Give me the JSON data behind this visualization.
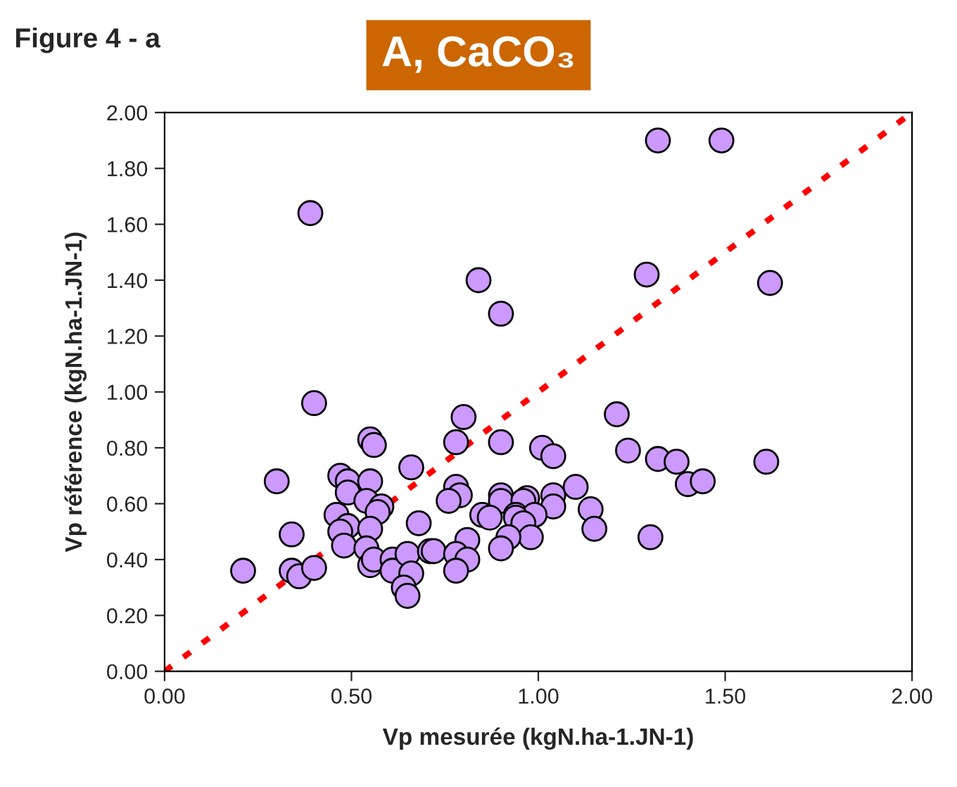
{
  "chart_data": {
    "type": "scatter",
    "title": "Figure 4 - a",
    "subtitle": "A, CaCO₃",
    "xlabel": "Vp mesurée (kgN.ha-1.JN-1)",
    "ylabel": "Vp référence (kgN.ha-1.JN-1)",
    "xlim": [
      0,
      2
    ],
    "ylim": [
      0,
      2
    ],
    "xticks": [
      {
        "value": 0,
        "label": "0.00"
      },
      {
        "value": 0.5,
        "label": "0.50"
      },
      {
        "value": 1,
        "label": "1.00"
      },
      {
        "value": 1.5,
        "label": "1.50"
      },
      {
        "value": 2,
        "label": "2.00"
      }
    ],
    "yticks": [
      {
        "value": 0,
        "label": "0.00"
      },
      {
        "value": 0.2,
        "label": "0.20"
      },
      {
        "value": 0.4,
        "label": "0.40"
      },
      {
        "value": 0.6,
        "label": "0.60"
      },
      {
        "value": 0.8,
        "label": "0.80"
      },
      {
        "value": 1,
        "label": "1.00"
      },
      {
        "value": 1.2,
        "label": "1.20"
      },
      {
        "value": 1.4,
        "label": "1.40"
      },
      {
        "value": 1.6,
        "label": "1.60"
      },
      {
        "value": 1.8,
        "label": "1.80"
      },
      {
        "value": 2,
        "label": "2.00"
      }
    ],
    "grid": false,
    "marker": "circle",
    "series": [
      {
        "color": "#cc99ff",
        "x": [
          0.39,
          0.84,
          0.9,
          1.29,
          1.62,
          1.32,
          1.49,
          0.4,
          0.55,
          0.56,
          0.3,
          0.47,
          0.49,
          0.55,
          0.66,
          0.49,
          0.54,
          0.58,
          0.57,
          0.46,
          0.49,
          0.47,
          0.48,
          0.55,
          0.68,
          0.34,
          0.54,
          0.55,
          0.56,
          0.61,
          0.61,
          0.65,
          0.66,
          0.64,
          0.65,
          0.71,
          0.21,
          0.34,
          0.36,
          0.4,
          0.8,
          0.78,
          0.9,
          1.21,
          1.01,
          1.04,
          1.24,
          1.32,
          1.37,
          1.4,
          1.44,
          0.78,
          0.79,
          0.76,
          0.9,
          0.9,
          0.97,
          0.96,
          1.04,
          1.04,
          1.1,
          1.14,
          1.15,
          1.3,
          0.85,
          0.87,
          0.94,
          0.99,
          0.94,
          0.96,
          0.98,
          0.92,
          0.9,
          0.81,
          0.72,
          0.78,
          0.81,
          0.78,
          1.61
        ],
        "values": [
          1.64,
          1.4,
          1.28,
          1.42,
          1.39,
          1.9,
          1.9,
          0.96,
          0.83,
          0.81,
          0.68,
          0.7,
          0.68,
          0.68,
          0.73,
          0.64,
          0.61,
          0.59,
          0.57,
          0.56,
          0.52,
          0.5,
          0.45,
          0.51,
          0.53,
          0.49,
          0.44,
          0.38,
          0.4,
          0.4,
          0.36,
          0.42,
          0.35,
          0.3,
          0.27,
          0.43,
          0.36,
          0.36,
          0.34,
          0.37,
          0.91,
          0.82,
          0.82,
          0.92,
          0.8,
          0.77,
          0.79,
          0.76,
          0.75,
          0.67,
          0.68,
          0.66,
          0.63,
          0.61,
          0.63,
          0.61,
          0.62,
          0.61,
          0.63,
          0.59,
          0.66,
          0.58,
          0.51,
          0.48,
          0.56,
          0.55,
          0.56,
          0.56,
          0.55,
          0.53,
          0.48,
          0.48,
          0.44,
          0.47,
          0.43,
          0.42,
          0.4,
          0.36,
          0.75
        ]
      },
      {
        "type": "line",
        "color": "#ff0000",
        "line_style": "dotted",
        "marker": "none",
        "x": [
          0,
          2
        ],
        "values": [
          0,
          2
        ]
      }
    ]
  }
}
